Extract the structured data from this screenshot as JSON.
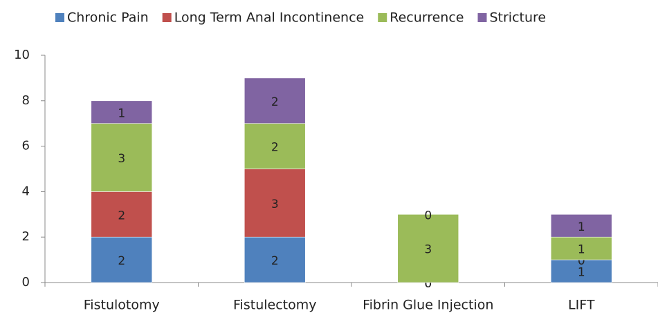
{
  "chart_data": {
    "type": "stacked_bar",
    "categories": [
      "Fistulotomy",
      "Fistulectomy",
      "Fibrin Glue Injection",
      "LIFT"
    ],
    "series": [
      {
        "name": "Chronic Pain",
        "color": "#4f81bd",
        "values": [
          2,
          2,
          0,
          1
        ]
      },
      {
        "name": "Long Term Anal Incontinence",
        "color": "#c0504d",
        "values": [
          2,
          3,
          0,
          0
        ]
      },
      {
        "name": "Recurrence",
        "color": "#9bbb59",
        "values": [
          3,
          2,
          3,
          1
        ]
      },
      {
        "name": "Stricture",
        "color": "#8064a2",
        "values": [
          1,
          2,
          0,
          1
        ]
      }
    ],
    "ylim": [
      0,
      10
    ],
    "yticks": [
      0,
      2,
      4,
      6,
      8,
      10
    ],
    "legend": "top"
  }
}
